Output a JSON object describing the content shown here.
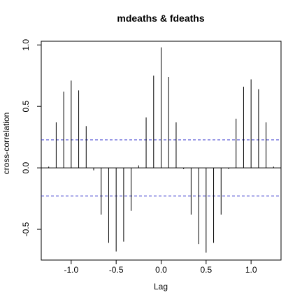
{
  "chart_data": {
    "type": "bar",
    "title": "mdeaths & fdeaths",
    "xlabel": "Lag",
    "ylabel": "cross-correlation",
    "xlim": [
      -1.333,
      1.333
    ],
    "ylim": [
      -0.75,
      1.03
    ],
    "x_ticks": [
      -1.0,
      -0.5,
      0.0,
      0.5,
      1.0
    ],
    "x_tick_labels": [
      "-1.0",
      "-0.5",
      "0.0",
      "0.5",
      "1.0"
    ],
    "y_ticks": [
      -0.5,
      0.0,
      0.5,
      1.0
    ],
    "y_tick_labels": [
      "-0.5",
      "0.0",
      "0.5",
      "1.0"
    ],
    "confidence_band": [
      0.228,
      -0.228
    ],
    "grid": false,
    "x": [
      -1.25,
      -1.1667,
      -1.0833,
      -1.0,
      -0.9167,
      -0.8333,
      -0.75,
      -0.6667,
      -0.5833,
      -0.5,
      -0.4167,
      -0.3333,
      -0.25,
      -0.1667,
      -0.0833,
      0.0,
      0.0833,
      0.1667,
      0.25,
      0.3333,
      0.4167,
      0.5,
      0.5833,
      0.6667,
      0.75,
      0.8333,
      0.9167,
      1.0,
      1.0833,
      1.1667,
      1.25
    ],
    "values": [
      0.01,
      0.37,
      0.62,
      0.71,
      0.63,
      0.34,
      -0.02,
      -0.38,
      -0.61,
      -0.68,
      -0.6,
      -0.35,
      0.02,
      0.41,
      0.75,
      0.98,
      0.74,
      0.37,
      -0.01,
      -0.38,
      -0.62,
      -0.69,
      -0.61,
      -0.38,
      -0.01,
      0.4,
      0.66,
      0.72,
      0.64,
      0.37,
      0.01
    ]
  }
}
